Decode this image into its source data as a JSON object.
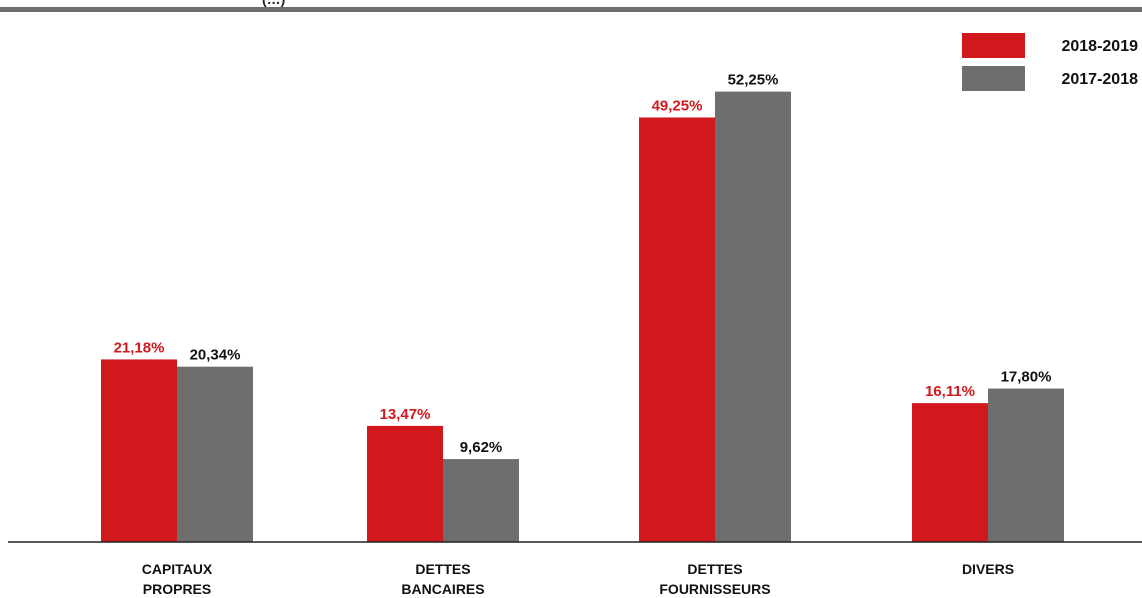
{
  "top_fragment": "(…)",
  "colors": {
    "series_2018_2019": "#d0181d",
    "series_2017_2018": "#6e6e6e",
    "label_2018_2019": "#d0181d",
    "label_2017_2018": "#111111",
    "axis": "#222222"
  },
  "chart_data": {
    "type": "bar",
    "title": "",
    "xlabel": "",
    "ylabel": "",
    "categories": [
      [
        "CAPITAUX",
        "PROPRES"
      ],
      [
        "DETTES",
        "BANCAIRES"
      ],
      [
        "DETTES",
        "FOURNISSEURS"
      ],
      [
        "DIVERS"
      ]
    ],
    "series": [
      {
        "name": "2018-2019",
        "values": [
          21.18,
          13.47,
          49.25,
          16.11
        ],
        "labels": [
          "21,18%",
          "13,47%",
          "49,25%",
          "16,11%"
        ]
      },
      {
        "name": "2017-2018",
        "values": [
          20.34,
          9.62,
          52.25,
          17.8
        ],
        "labels": [
          "20,34%",
          "9,62%",
          "52,25%",
          "17,80%"
        ]
      }
    ],
    "ylim": [
      0,
      60
    ],
    "grid": false,
    "legend_position": "top-right"
  }
}
